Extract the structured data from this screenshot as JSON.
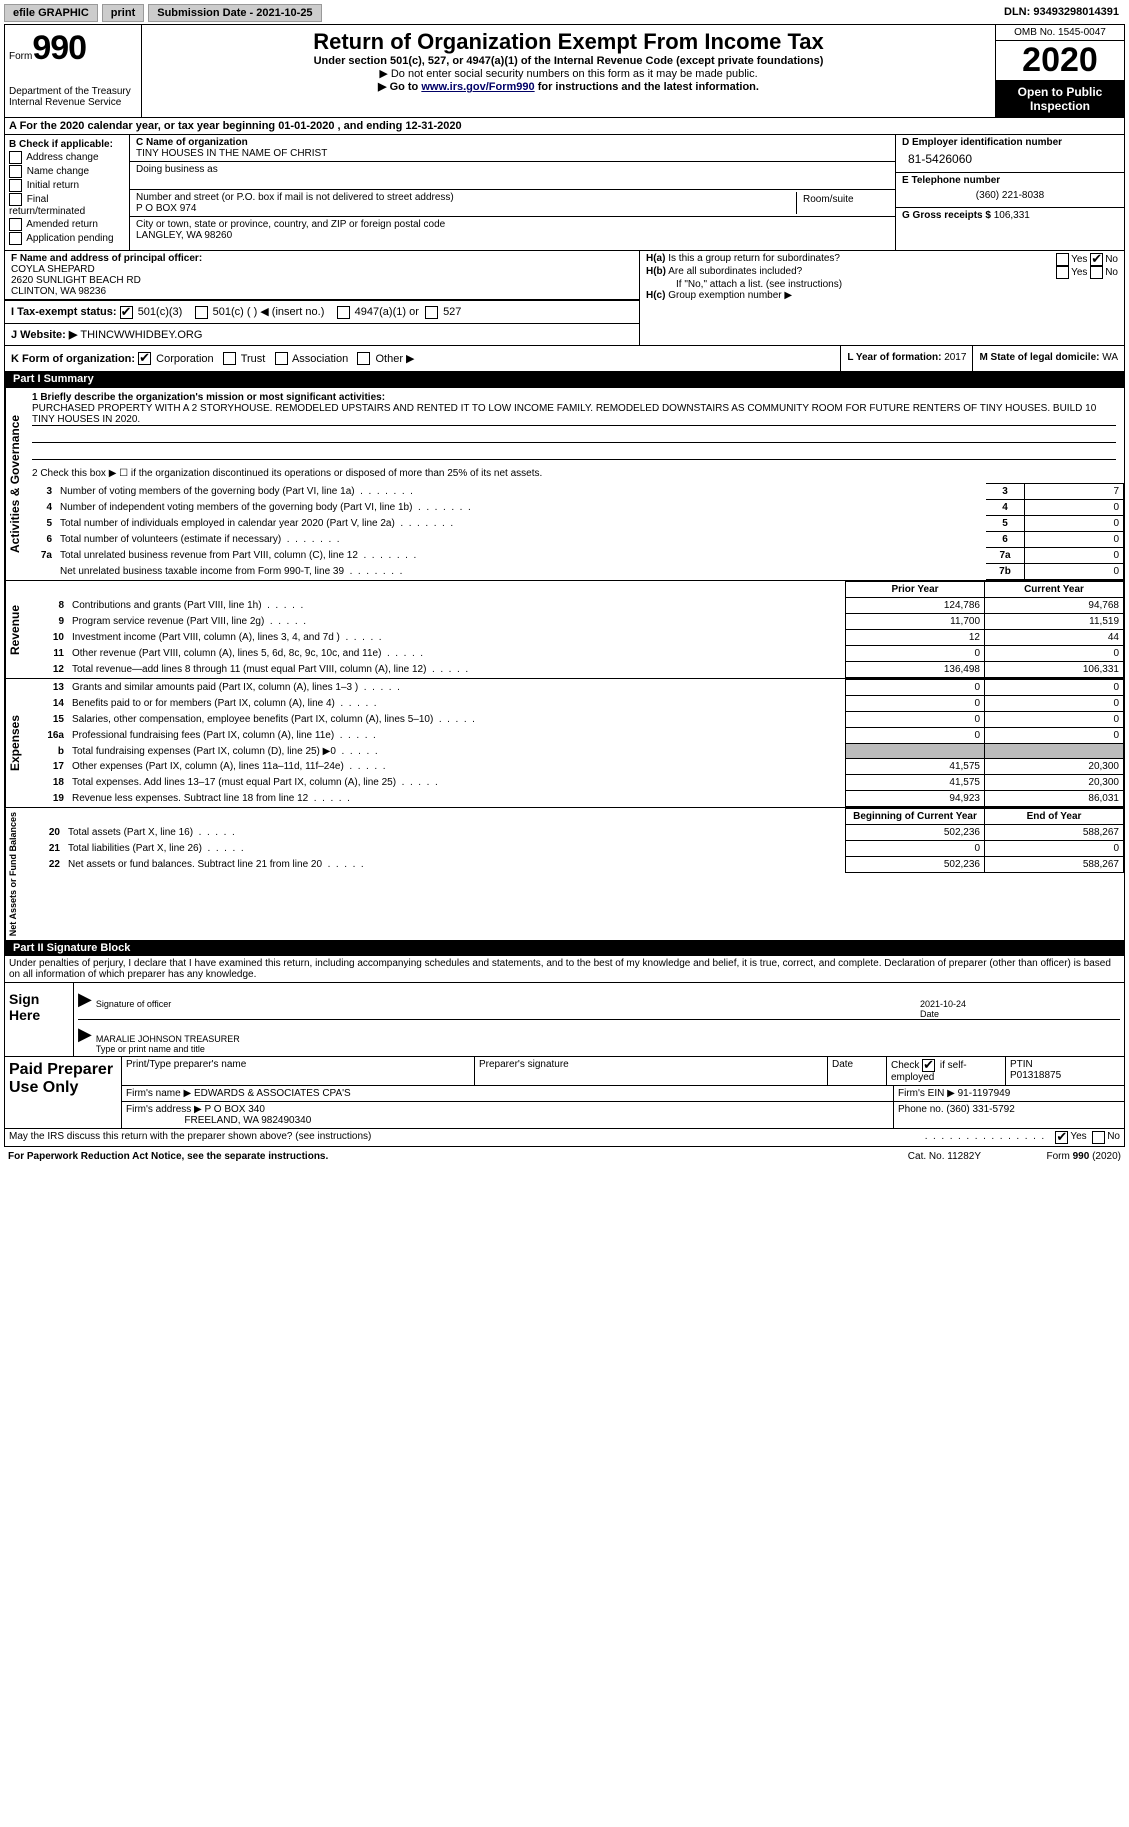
{
  "topbar": {
    "efile": "efile GRAPHIC",
    "print": "print",
    "submission_label": "Submission Date - ",
    "submission_date": "2021-10-25",
    "dln_label": "DLN: ",
    "dln": "93493298014391"
  },
  "header": {
    "form_prefix": "Form",
    "form_number": "990",
    "dept": "Department of the Treasury\nInternal Revenue Service",
    "title": "Return of Organization Exempt From Income Tax",
    "subtitle": "Under section 501(c), 527, or 4947(a)(1) of the Internal Revenue Code (except private foundations)",
    "note1": "▶ Do not enter social security numbers on this form as it may be made public.",
    "note2_pre": "▶ Go to ",
    "note2_link": "www.irs.gov/Form990",
    "note2_post": " for instructions and the latest information.",
    "omb": "OMB No. 1545-0047",
    "year": "2020",
    "open": "Open to Public Inspection"
  },
  "section_a": {
    "text": "A For the 2020 calendar year, or tax year beginning 01-01-2020    , and ending 12-31-2020"
  },
  "section_b": {
    "label": "B Check if applicable:",
    "items": [
      "Address change",
      "Name change",
      "Initial return",
      "Final return/terminated",
      "Amended return",
      "Application pending"
    ]
  },
  "section_c": {
    "name_label": "C Name of organization",
    "name": "TINY HOUSES IN THE NAME OF CHRIST",
    "dba_label": "Doing business as",
    "dba": "",
    "addr_label": "Number and street (or P.O. box if mail is not delivered to street address)",
    "room_label": "Room/suite",
    "addr": "P O BOX 974",
    "city_label": "City or town, state or province, country, and ZIP or foreign postal code",
    "city": "LANGLEY, WA  98260"
  },
  "section_d": {
    "label": "D Employer identification number",
    "ein": "81-5426060"
  },
  "section_e": {
    "label": "E Telephone number",
    "phone": "(360) 221-8038"
  },
  "section_g": {
    "label": "G Gross receipts $ ",
    "amount": "106,331"
  },
  "section_f": {
    "label": "F Name and address of principal officer:",
    "name": "COYLA SHEPARD",
    "addr1": "2620 SUNLIGHT BEACH RD",
    "addr2": "CLINTON, WA  98236"
  },
  "section_h": {
    "a_label": "H(a)  Is this a group return for subordinates?",
    "b_label": "H(b)  Are all subordinates included?",
    "b_note": "If \"No,\" attach a list. (see instructions)",
    "c_label": "H(c)  Group exemption number ▶",
    "yes": "Yes",
    "no": "No"
  },
  "section_i": {
    "label": "I   Tax-exempt status:",
    "opts": [
      "501(c)(3)",
      "501(c) (  ) ◀ (insert no.)",
      "4947(a)(1) or",
      "527"
    ]
  },
  "section_j": {
    "label": "J   Website: ▶ ",
    "value": "THINCWWHIDBEY.ORG"
  },
  "section_k": {
    "label": "K Form of organization:",
    "opts": [
      "Corporation",
      "Trust",
      "Association",
      "Other ▶"
    ]
  },
  "section_l": {
    "label": "L Year of formation: ",
    "value": "2017"
  },
  "section_m": {
    "label": "M State of legal domicile: ",
    "value": "WA"
  },
  "part1": {
    "title": "Part I      Summary",
    "side_gov": "Activities & Governance",
    "side_rev": "Revenue",
    "side_exp": "Expenses",
    "side_net": "Net Assets or Fund Balances",
    "line1_label": "1  Briefly describe the organization's mission or most significant activities:",
    "line1_text": "PURCHASED PROPERTY WITH A 2 STORYHOUSE. REMODELED UPSTAIRS AND RENTED IT TO LOW INCOME FAMILY. REMODELED DOWNSTAIRS AS COMMUNITY ROOM FOR FUTURE RENTERS OF TINY HOUSES. BUILD 10 TINY HOUSES IN 2020.",
    "line2": "2   Check this box ▶ ☐  if the organization discontinued its operations or disposed of more than 25% of its net assets.",
    "rows_gov": [
      {
        "n": "3",
        "desc": "Number of voting members of the governing body (Part VI, line 1a)",
        "box": "3",
        "val": "7"
      },
      {
        "n": "4",
        "desc": "Number of independent voting members of the governing body (Part VI, line 1b)",
        "box": "4",
        "val": "0"
      },
      {
        "n": "5",
        "desc": "Total number of individuals employed in calendar year 2020 (Part V, line 2a)",
        "box": "5",
        "val": "0"
      },
      {
        "n": "6",
        "desc": "Total number of volunteers (estimate if necessary)",
        "box": "6",
        "val": "0"
      },
      {
        "n": "7a",
        "desc": "Total unrelated business revenue from Part VIII, column (C), line 12",
        "box": "7a",
        "val": "0"
      },
      {
        "n": "",
        "desc": "Net unrelated business taxable income from Form 990-T, line 39",
        "box": "7b",
        "val": "0"
      }
    ],
    "col_prior": "Prior Year",
    "col_current": "Current Year",
    "rows_rev": [
      {
        "n": "8",
        "desc": "Contributions and grants (Part VIII, line 1h)",
        "p": "124,786",
        "c": "94,768"
      },
      {
        "n": "9",
        "desc": "Program service revenue (Part VIII, line 2g)",
        "p": "11,700",
        "c": "11,519"
      },
      {
        "n": "10",
        "desc": "Investment income (Part VIII, column (A), lines 3, 4, and 7d )",
        "p": "12",
        "c": "44"
      },
      {
        "n": "11",
        "desc": "Other revenue (Part VIII, column (A), lines 5, 6d, 8c, 9c, 10c, and 11e)",
        "p": "0",
        "c": "0"
      },
      {
        "n": "12",
        "desc": "Total revenue—add lines 8 through 11 (must equal Part VIII, column (A), line 12)",
        "p": "136,498",
        "c": "106,331"
      }
    ],
    "rows_exp": [
      {
        "n": "13",
        "desc": "Grants and similar amounts paid (Part IX, column (A), lines 1–3 )",
        "p": "0",
        "c": "0"
      },
      {
        "n": "14",
        "desc": "Benefits paid to or for members (Part IX, column (A), line 4)",
        "p": "0",
        "c": "0"
      },
      {
        "n": "15",
        "desc": "Salaries, other compensation, employee benefits (Part IX, column (A), lines 5–10)",
        "p": "0",
        "c": "0"
      },
      {
        "n": "16a",
        "desc": "Professional fundraising fees (Part IX, column (A), line 11e)",
        "p": "0",
        "c": "0"
      },
      {
        "n": "b",
        "desc": "Total fundraising expenses (Part IX, column (D), line 25) ▶0",
        "p": "SHADE",
        "c": "SHADE"
      },
      {
        "n": "17",
        "desc": "Other expenses (Part IX, column (A), lines 11a–11d, 11f–24e)",
        "p": "41,575",
        "c": "20,300"
      },
      {
        "n": "18",
        "desc": "Total expenses. Add lines 13–17 (must equal Part IX, column (A), line 25)",
        "p": "41,575",
        "c": "20,300"
      },
      {
        "n": "19",
        "desc": "Revenue less expenses. Subtract line 18 from line 12",
        "p": "94,923",
        "c": "86,031"
      }
    ],
    "col_begin": "Beginning of Current Year",
    "col_end": "End of Year",
    "rows_net": [
      {
        "n": "20",
        "desc": "Total assets (Part X, line 16)",
        "p": "502,236",
        "c": "588,267"
      },
      {
        "n": "21",
        "desc": "Total liabilities (Part X, line 26)",
        "p": "0",
        "c": "0"
      },
      {
        "n": "22",
        "desc": "Net assets or fund balances. Subtract line 21 from line 20",
        "p": "502,236",
        "c": "588,267"
      }
    ]
  },
  "part2": {
    "title": "Part II     Signature Block",
    "declaration": "Under penalties of perjury, I declare that I have examined this return, including accompanying schedules and statements, and to the best of my knowledge and belief, it is true, correct, and complete. Declaration of preparer (other than officer) is based on all information of which preparer has any knowledge.",
    "sign_here": "Sign Here",
    "sig_officer": "Signature of officer",
    "sig_date": "Date",
    "sig_date_val": "2021-10-24",
    "sig_name": "MARALIE JOHNSON  TREASURER",
    "sig_name_label": "Type or print name and title",
    "paid_label": "Paid Preparer Use Only",
    "prep_name_label": "Print/Type preparer's name",
    "prep_sig_label": "Preparer's signature",
    "prep_date_label": "Date",
    "prep_check_label": "Check ☑ if self-employed",
    "ptin_label": "PTIN",
    "ptin": "P01318875",
    "firm_name_label": "Firm's name    ▶ ",
    "firm_name": "EDWARDS & ASSOCIATES CPA'S",
    "firm_ein_label": "Firm's EIN ▶ ",
    "firm_ein": "91-1197949",
    "firm_addr_label": "Firm's address ▶ ",
    "firm_addr": "P O BOX 340",
    "firm_city": "FREELAND, WA  982490340",
    "firm_phone_label": "Phone no. ",
    "firm_phone": "(360) 331-5792",
    "discuss": "May the IRS discuss this return with the preparer shown above? (see instructions)",
    "yes": "Yes",
    "no": "No"
  },
  "footer": {
    "left": "For Paperwork Reduction Act Notice, see the separate instructions.",
    "mid": "Cat. No. 11282Y",
    "right": "Form 990 (2020)"
  }
}
